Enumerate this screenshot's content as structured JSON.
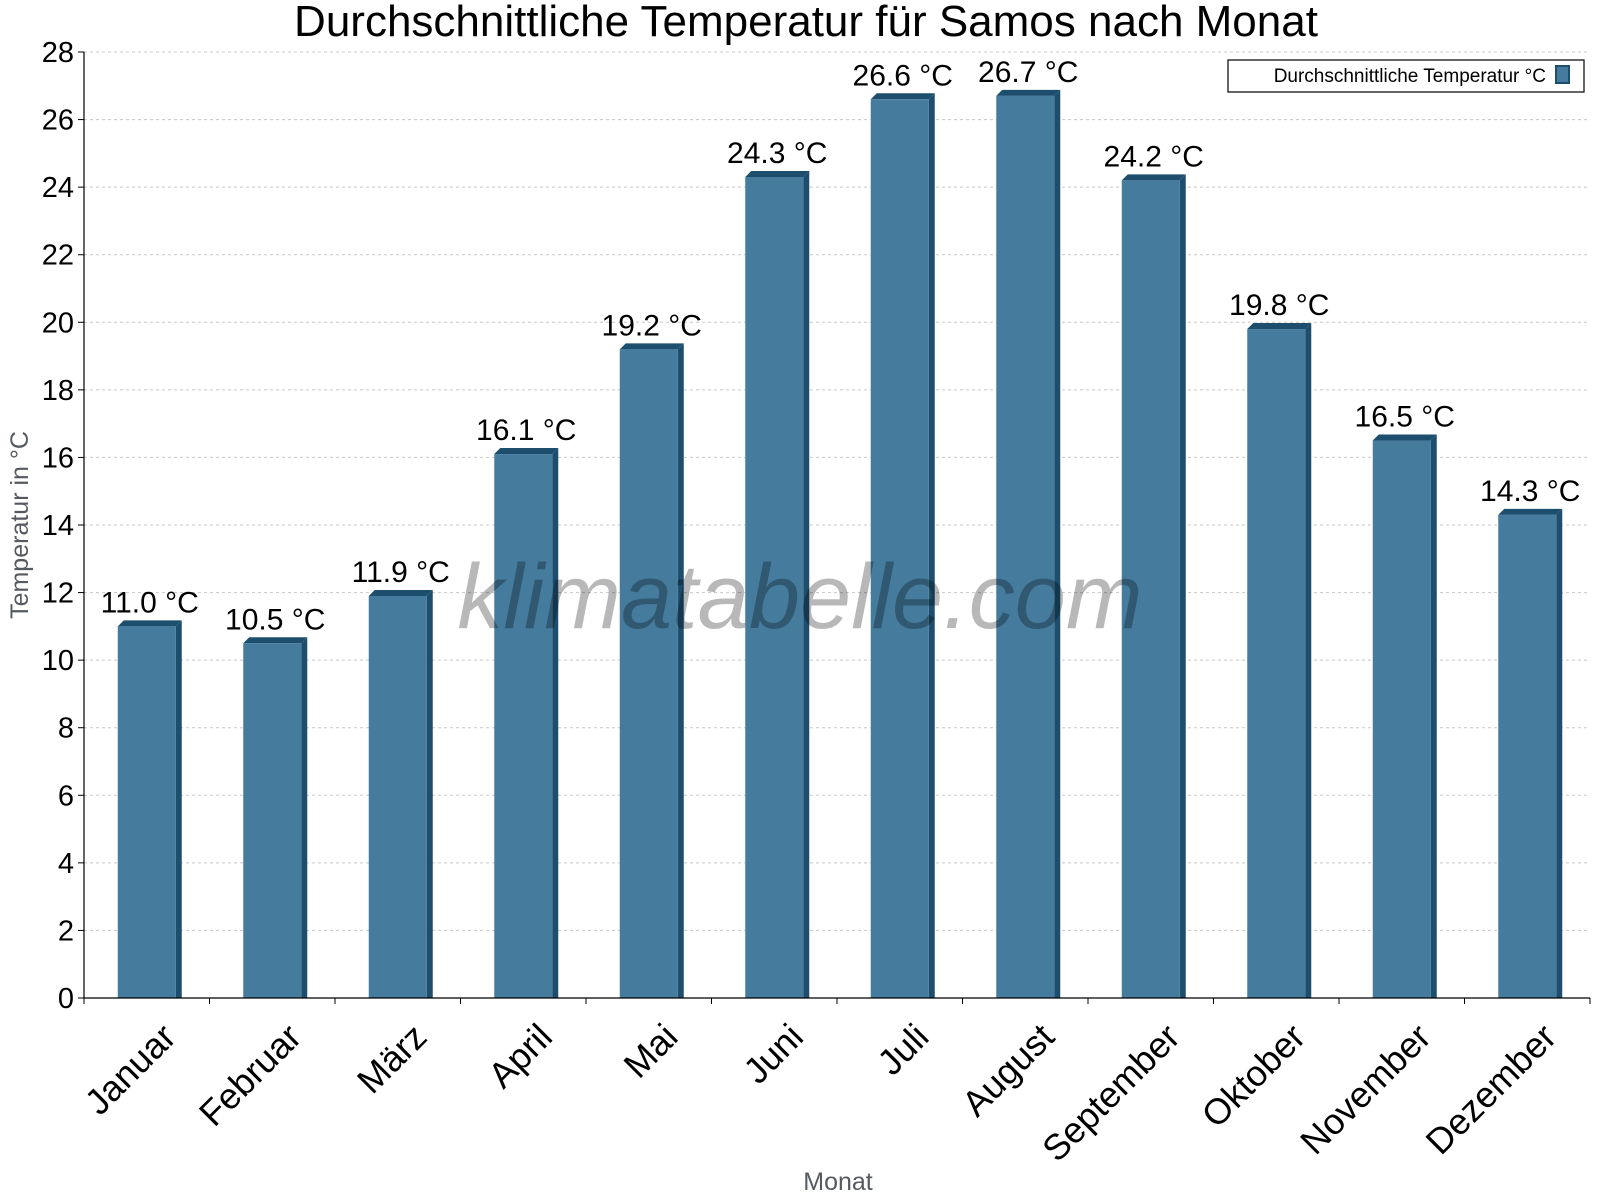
{
  "chart_data": {
    "type": "bar",
    "title": "Durchschnittliche Temperatur für Samos nach Monat",
    "xlabel": "Monat",
    "ylabel": "Temperatur in °C",
    "categories": [
      "Januar",
      "Februar",
      "März",
      "April",
      "Mai",
      "Juni",
      "Juli",
      "August",
      "September",
      "Oktober",
      "November",
      "Dezember"
    ],
    "series": [
      {
        "name": "Durchschnittliche Temperatur °C",
        "values": [
          11.0,
          10.5,
          11.9,
          16.1,
          19.2,
          24.3,
          26.6,
          26.7,
          24.2,
          19.8,
          16.5,
          14.3
        ],
        "data_labels": [
          "11.0 °C",
          "10.5 °C",
          "11.9 °C",
          "16.1 °C",
          "19.2 °C",
          "24.3 °C",
          "26.6 °C",
          "26.7 °C",
          "24.2 °C",
          "19.8 °C",
          "16.5 °C",
          "14.3 °C"
        ]
      }
    ],
    "ylim": [
      0,
      28
    ],
    "yticks": [
      0,
      2,
      4,
      6,
      8,
      10,
      12,
      14,
      16,
      18,
      20,
      22,
      24,
      26,
      28
    ],
    "grid": true,
    "legend_position": "top-right",
    "watermark": "klimatabelle.com",
    "colors": {
      "bar": "#457b9d",
      "bar_side": "#1d4e6e",
      "grid": "#c8c8c8",
      "axis": "#000000"
    }
  }
}
